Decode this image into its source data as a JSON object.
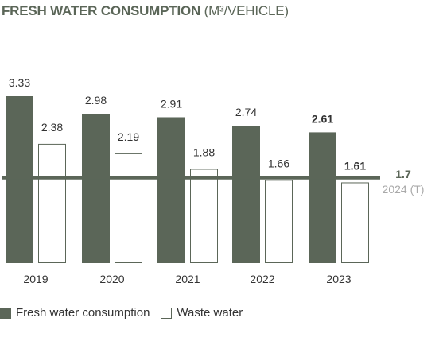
{
  "title": {
    "main": "FRESH WATER CONSUMPTION",
    "unit": "(M³/VEHICLE)"
  },
  "colors": {
    "fresh": "#5b6658",
    "waste_fill": "#ffffff",
    "waste_stroke": "#5b6658",
    "target_line": "#5b6658",
    "target_sublabel": "#a9a9a9",
    "text": "#333333"
  },
  "chart_data": {
    "type": "bar",
    "categories": [
      "2019",
      "2020",
      "2021",
      "2022",
      "2023"
    ],
    "series": [
      {
        "name": "Fresh water consumption",
        "values": [
          3.33,
          2.98,
          2.91,
          2.74,
          2.61
        ],
        "labels": [
          "3.33",
          "2.98",
          "2.91",
          "2.74",
          "2.61"
        ]
      },
      {
        "name": "Waste water",
        "values": [
          2.38,
          2.19,
          1.88,
          1.66,
          1.61
        ],
        "labels": [
          "2.38",
          "2.19",
          "1.88",
          "1.66",
          "1.61"
        ]
      }
    ],
    "bold_label_category": "2023",
    "target": {
      "value": 1.7,
      "label": "1.7",
      "sublabel": "2024 (T)"
    },
    "ylim": [
      0,
      3.33
    ],
    "grid": false,
    "legend_position": "bottom-left"
  },
  "legend": [
    {
      "label": "Fresh water consumption",
      "style": "filled"
    },
    {
      "label": "Waste water",
      "style": "outline"
    }
  ]
}
